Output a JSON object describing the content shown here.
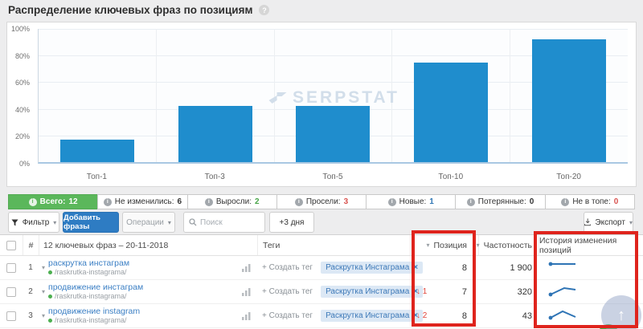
{
  "page": {
    "title": "Распределение ключевых фраз по позициям"
  },
  "chart_data": {
    "type": "bar",
    "title": "Распределение ключевых фраз по позициям",
    "categories": [
      "Топ-1",
      "Топ-3",
      "Топ-5",
      "Топ-10",
      "Топ-20"
    ],
    "values": [
      17,
      42,
      42,
      75,
      92
    ],
    "xlabel": "",
    "ylabel": "",
    "ylim": [
      0,
      100
    ],
    "yticks": [
      "100%",
      "80%",
      "60%",
      "40%",
      "20%",
      "0%"
    ],
    "grid": true,
    "legend": "none",
    "bar_color": "#1f8dcd",
    "watermark": "SERPSTAT"
  },
  "tabs": [
    {
      "label": "Всего:",
      "count": "12",
      "count_color": "#ffffff"
    },
    {
      "label": "Не изменились:",
      "count": "6",
      "count_color": "#333333"
    },
    {
      "label": "Выросли:",
      "count": "2",
      "count_color": "#47a447"
    },
    {
      "label": "Просели:",
      "count": "3",
      "count_color": "#d9534f"
    },
    {
      "label": "Новые:",
      "count": "1",
      "count_color": "#3077b5"
    },
    {
      "label": "Потерянные:",
      "count": "0",
      "count_color": "#333333"
    },
    {
      "label": "Не в топе:",
      "count": "0",
      "count_color": "#d9534f"
    }
  ],
  "toolbar": {
    "filter_label": "Фильтр",
    "add_phrases_label": "Добавить фразы",
    "operations_label": "Операции",
    "search_placeholder": "Поиск",
    "add_days_label": "+3 дня",
    "export_label": "Экспорт"
  },
  "table": {
    "headers": {
      "number": "#",
      "keywords": "12 ключевых фраз – 20-11-2018",
      "tags": "Теги",
      "position": "Позиция",
      "frequency": "Частотность",
      "history": "История изменения позиций"
    },
    "create_tag_label": "+ Создать тег",
    "rows": [
      {
        "num": "1",
        "keyword": "раскрутка инстаграм",
        "url": "/raskrutka-instagrama/",
        "tag": "Раскрутка Инстаграма",
        "change": "",
        "position": "8",
        "frequency": "1 900",
        "spark": "3,5 34,5",
        "spark_dot": {
          "cx": "3",
          "cy": "5"
        }
      },
      {
        "num": "2",
        "keyword": "продвижение инстаграм",
        "url": "/raskrutka-instagrama/",
        "tag": "Раскрутка Инстаграма",
        "change": "↓ 1",
        "position": "7",
        "frequency": "320",
        "spark": "3,13 20,5 34,7",
        "spark_dot": {
          "cx": "3",
          "cy": "13"
        }
      },
      {
        "num": "3",
        "keyword": "продвижение instagram",
        "url": "/raskrutka-instagrama/",
        "tag": "Раскрутка Инстаграма",
        "change": "↓ 2",
        "position": "8",
        "frequency": "43",
        "spark": "3,12 18,4 34,11",
        "spark_dot": {
          "cx": "3",
          "cy": "12"
        }
      }
    ]
  },
  "icons": {
    "help": "?",
    "info": "i",
    "chevron_down": "▾",
    "sort_down": "▾",
    "expander": "▾",
    "tag_close": "×",
    "up_arrow": "↑"
  },
  "annotation": {
    "color": "#df241d"
  }
}
